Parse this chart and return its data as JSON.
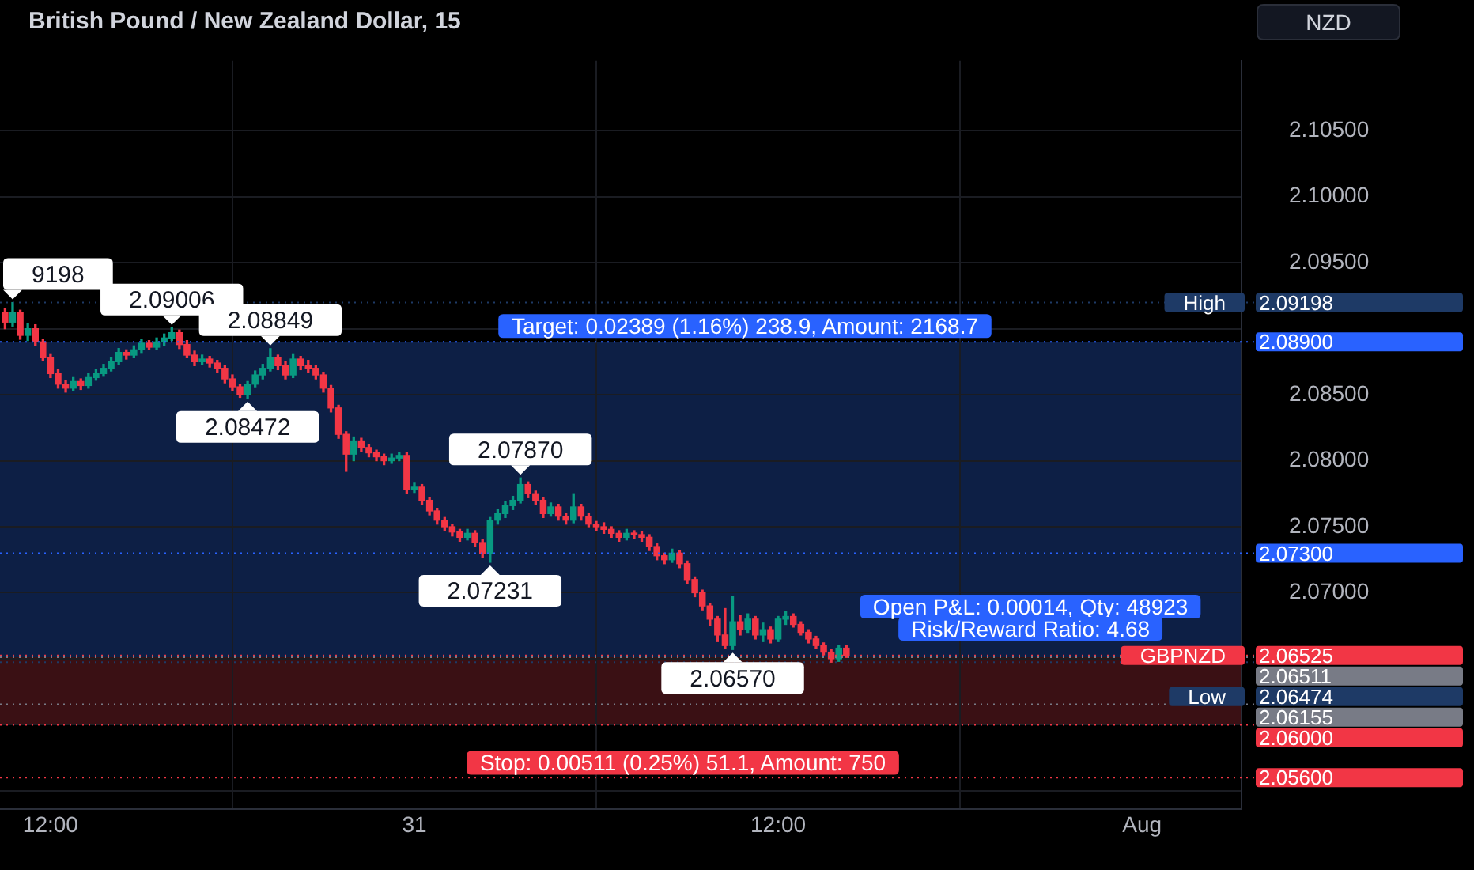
{
  "chart_data": {
    "type": "candlestick",
    "title": "British Pound / New Zealand Dollar, 15",
    "ylabel": "NZD",
    "x": [
      "--07-30T10:30",
      "--07-30T10:45",
      "--07-30T11:00",
      "--07-30T11:15",
      "--07-30T11:30",
      "--07-30T11:45",
      "--07-30T12:00",
      "--07-30T12:15",
      "--07-30T12:30",
      "--07-30T12:45",
      "--07-30T13:00",
      "--07-30T13:15",
      "--07-30T13:30",
      "--07-30T13:45",
      "--07-30T14:00",
      "--07-30T14:15",
      "--07-30T14:30",
      "--07-30T14:45",
      "--07-30T15:00",
      "--07-30T15:15",
      "--07-30T15:30",
      "--07-30T15:45",
      "--07-30T16:00",
      "--07-30T16:15",
      "--07-30T16:30",
      "--07-30T16:45",
      "--07-30T17:00",
      "--07-30T17:15",
      "--07-30T17:30",
      "--07-30T17:45",
      "--07-30T18:00",
      "--07-30T18:15",
      "--07-30T18:30",
      "--07-30T18:45",
      "--07-30T19:00",
      "--07-30T19:15",
      "--07-30T19:30",
      "--07-30T19:45",
      "--07-30T20:00",
      "--07-30T20:15",
      "--07-30T20:30",
      "--07-30T20:45",
      "--07-30T21:00",
      "--07-30T21:15",
      "--07-30T21:30",
      "--07-30T21:45",
      "--07-30T22:00",
      "--07-30T22:15",
      "--07-30T22:30",
      "--07-30T22:45",
      "--07-30T23:00",
      "--07-30T23:15",
      "--07-30T23:30",
      "--07-30T23:45",
      "--07-31T00:00",
      "--07-31T00:15",
      "--07-31T00:30",
      "--07-31T00:45",
      "--07-31T01:00",
      "--07-31T01:15",
      "--07-31T01:30",
      "--07-31T01:45",
      "--07-31T02:00",
      "--07-31T02:15",
      "--07-31T02:30",
      "--07-31T02:45",
      "--07-31T03:00",
      "--07-31T03:15",
      "--07-31T03:30",
      "--07-31T03:45",
      "--07-31T04:00",
      "--07-31T04:15",
      "--07-31T04:30",
      "--07-31T04:45",
      "--07-31T05:00",
      "--07-31T05:15",
      "--07-31T05:30",
      "--07-31T05:45",
      "--07-31T06:00",
      "--07-31T06:15",
      "--07-31T06:30",
      "--07-31T06:45",
      "--07-31T07:00",
      "--07-31T07:15",
      "--07-31T07:30",
      "--07-31T07:45",
      "--07-31T08:00",
      "--07-31T08:15",
      "--07-31T08:30",
      "--07-31T08:45",
      "--07-31T09:00",
      "--07-31T09:15",
      "--07-31T09:30",
      "--07-31T09:45",
      "--07-31T10:00",
      "--07-31T10:15",
      "--07-31T10:30",
      "--07-31T10:45",
      "--07-31T11:00",
      "--07-31T11:15",
      "--07-31T11:30",
      "--07-31T11:45",
      "--07-31T12:00",
      "--07-31T12:15",
      "--07-31T12:30",
      "--07-31T12:45",
      "--07-31T13:00",
      "--07-31T13:15",
      "--07-31T13:30",
      "--07-31T13:45",
      "--07-31T14:00",
      "--07-31T14:15"
    ],
    "ohlc": [
      [
        2.0912,
        2.0915,
        2.09,
        2.0905
      ],
      [
        2.0905,
        2.09198,
        2.0902,
        2.0912
      ],
      [
        2.0912,
        2.0914,
        2.0892,
        2.0895
      ],
      [
        2.0895,
        2.0904,
        2.0891,
        2.09
      ],
      [
        2.09,
        2.0903,
        2.0887,
        2.089
      ],
      [
        2.089,
        2.0892,
        2.0876,
        2.0878
      ],
      [
        2.0878,
        2.0881,
        2.0863,
        2.0866
      ],
      [
        2.0866,
        2.0869,
        2.0855,
        2.0858
      ],
      [
        2.0858,
        2.0861,
        2.0852,
        2.0855
      ],
      [
        2.0855,
        2.0863,
        2.0853,
        2.086
      ],
      [
        2.086,
        2.0862,
        2.0854,
        2.0857
      ],
      [
        2.0857,
        2.0866,
        2.0855,
        2.0863
      ],
      [
        2.0863,
        2.0869,
        2.0861,
        2.0866
      ],
      [
        2.0866,
        2.0873,
        2.0864,
        2.087
      ],
      [
        2.087,
        2.0878,
        2.0868,
        2.0875
      ],
      [
        2.0875,
        2.0885,
        2.0873,
        2.0882
      ],
      [
        2.0882,
        2.0884,
        2.0877,
        2.088
      ],
      [
        2.088,
        2.0887,
        2.0878,
        2.0884
      ],
      [
        2.0884,
        2.0892,
        2.0882,
        2.0889
      ],
      [
        2.0889,
        2.0891,
        2.0884,
        2.0886
      ],
      [
        2.0886,
        2.0893,
        2.0884,
        2.089
      ],
      [
        2.089,
        2.0896,
        2.0887,
        2.0893
      ],
      [
        2.0893,
        2.09006,
        2.0891,
        2.0897
      ],
      [
        2.0897,
        2.0899,
        2.0885,
        2.0888
      ],
      [
        2.0888,
        2.0891,
        2.0878,
        2.088
      ],
      [
        2.088,
        2.0883,
        2.0872,
        2.0875
      ],
      [
        2.0875,
        2.088,
        2.0873,
        2.0877
      ],
      [
        2.0877,
        2.0879,
        2.0871,
        2.0874
      ],
      [
        2.0874,
        2.0876,
        2.0867,
        2.087
      ],
      [
        2.087,
        2.0872,
        2.0859,
        2.0862
      ],
      [
        2.0862,
        2.0865,
        2.0853,
        2.0856
      ],
      [
        2.0856,
        2.0858,
        2.0848,
        2.085
      ],
      [
        2.085,
        2.086,
        2.08472,
        2.0858
      ],
      [
        2.0858,
        2.0868,
        2.0856,
        2.0865
      ],
      [
        2.0865,
        2.0873,
        2.0862,
        2.087
      ],
      [
        2.087,
        2.08849,
        2.0868,
        2.0878
      ],
      [
        2.0878,
        2.088,
        2.0869,
        2.0872
      ],
      [
        2.0872,
        2.0875,
        2.0862,
        2.0865
      ],
      [
        2.0865,
        2.0881,
        2.0863,
        2.0877
      ],
      [
        2.0877,
        2.0879,
        2.0869,
        2.0872
      ],
      [
        2.0872,
        2.0876,
        2.0867,
        2.087
      ],
      [
        2.087,
        2.0872,
        2.0862,
        2.0865
      ],
      [
        2.0865,
        2.0867,
        2.0852,
        2.0855
      ],
      [
        2.0855,
        2.0857,
        2.0837,
        2.084
      ],
      [
        2.084,
        2.0842,
        2.0817,
        2.082
      ],
      [
        2.082,
        2.0822,
        2.0792,
        2.0805
      ],
      [
        2.0805,
        2.0818,
        2.08,
        2.0815
      ],
      [
        2.0815,
        2.0817,
        2.0807,
        2.081
      ],
      [
        2.081,
        2.0812,
        2.0803,
        2.0806
      ],
      [
        2.0806,
        2.0808,
        2.08,
        2.0803
      ],
      [
        2.0803,
        2.0805,
        2.0797,
        2.08
      ],
      [
        2.08,
        2.0805,
        2.0798,
        2.0802
      ],
      [
        2.0802,
        2.0806,
        2.08,
        2.0804
      ],
      [
        2.0804,
        2.0806,
        2.0775,
        2.0778
      ],
      [
        2.0778,
        2.0783,
        2.0776,
        2.078
      ],
      [
        2.078,
        2.0782,
        2.0767,
        2.077
      ],
      [
        2.077,
        2.0772,
        2.0759,
        2.0762
      ],
      [
        2.0762,
        2.0764,
        2.0752,
        2.0755
      ],
      [
        2.0755,
        2.0757,
        2.0747,
        2.075
      ],
      [
        2.075,
        2.0752,
        2.0743,
        2.0746
      ],
      [
        2.0746,
        2.0748,
        2.0739,
        2.0742
      ],
      [
        2.0742,
        2.0748,
        2.074,
        2.0745
      ],
      [
        2.0745,
        2.0747,
        2.0735,
        2.0738
      ],
      [
        2.0738,
        2.074,
        2.0727,
        2.073
      ],
      [
        2.073,
        2.0757,
        2.07231,
        2.0755
      ],
      [
        2.0755,
        2.0763,
        2.0752,
        2.076
      ],
      [
        2.076,
        2.0769,
        2.0757,
        2.0766
      ],
      [
        2.0766,
        2.0773,
        2.0763,
        2.077
      ],
      [
        2.077,
        2.0787,
        2.0768,
        2.0782
      ],
      [
        2.0782,
        2.0784,
        2.0772,
        2.0775
      ],
      [
        2.0775,
        2.0777,
        2.0767,
        2.077
      ],
      [
        2.077,
        2.0772,
        2.0757,
        2.076
      ],
      [
        2.076,
        2.0768,
        2.0758,
        2.0765
      ],
      [
        2.0765,
        2.0767,
        2.0755,
        2.0758
      ],
      [
        2.0758,
        2.076,
        2.0752,
        2.0755
      ],
      [
        2.0755,
        2.0775,
        2.0753,
        2.0765
      ],
      [
        2.0765,
        2.0767,
        2.0755,
        2.0758
      ],
      [
        2.0758,
        2.076,
        2.075,
        2.0752
      ],
      [
        2.0752,
        2.0754,
        2.0747,
        2.075
      ],
      [
        2.075,
        2.0753,
        2.0745,
        2.0748
      ],
      [
        2.0748,
        2.075,
        2.0742,
        2.0745
      ],
      [
        2.0745,
        2.0747,
        2.0739,
        2.0742
      ],
      [
        2.0742,
        2.0748,
        2.074,
        2.0745
      ],
      [
        2.0745,
        2.0747,
        2.0741,
        2.0744
      ],
      [
        2.0744,
        2.0746,
        2.0739,
        2.0742
      ],
      [
        2.0742,
        2.0744,
        2.0732,
        2.0735
      ],
      [
        2.0735,
        2.0737,
        2.0725,
        2.0728
      ],
      [
        2.0728,
        2.073,
        2.0722,
        2.0725
      ],
      [
        2.0725,
        2.0733,
        2.0723,
        2.073
      ],
      [
        2.073,
        2.0732,
        2.0719,
        2.0722
      ],
      [
        2.0722,
        2.0724,
        2.0707,
        2.071
      ],
      [
        2.071,
        2.0712,
        2.0697,
        2.07
      ],
      [
        2.07,
        2.0702,
        2.0687,
        2.069
      ],
      [
        2.069,
        2.0692,
        2.0675,
        2.068
      ],
      [
        2.068,
        2.0682,
        2.0663,
        2.0668
      ],
      [
        2.0668,
        2.0688,
        2.0658,
        2.066
      ],
      [
        2.066,
        2.0697,
        2.0657,
        2.0678
      ],
      [
        2.0678,
        2.0683,
        2.0668,
        2.0672
      ],
      [
        2.0672,
        2.0684,
        2.067,
        2.068
      ],
      [
        2.068,
        2.0682,
        2.0665,
        2.0668
      ],
      [
        2.0668,
        2.0677,
        2.0663,
        2.0672
      ],
      [
        2.0672,
        2.0674,
        2.0662,
        2.0665
      ],
      [
        2.0665,
        2.0682,
        2.0663,
        2.068
      ],
      [
        2.068,
        2.0686,
        2.0676,
        2.0682
      ],
      [
        2.0682,
        2.0684,
        2.0674,
        2.0676
      ],
      [
        2.0676,
        2.0678,
        2.0668,
        2.067
      ],
      [
        2.067,
        2.0672,
        2.0662,
        2.0665
      ],
      [
        2.0665,
        2.0667,
        2.0658,
        2.066
      ],
      [
        2.066,
        2.0662,
        2.0653,
        2.0655
      ],
      [
        2.0655,
        2.0657,
        2.06474,
        2.065
      ],
      [
        2.065,
        2.066,
        2.0648,
        2.0658
      ],
      [
        2.0658,
        2.066,
        2.0651,
        2.06525
      ]
    ],
    "colors": [
      "#f23645",
      "#089981",
      "#f23645",
      "#089981",
      "#f23645",
      "#f23645",
      "#f23645",
      "#f23645",
      "#f23645",
      "#089981",
      "#f23645",
      "#089981",
      "#089981",
      "#089981",
      "#089981",
      "#089981",
      "#f23645",
      "#089981",
      "#089981",
      "#f23645",
      "#089981",
      "#089981",
      "#089981",
      "#f23645",
      "#f23645",
      "#f23645",
      "#089981",
      "#f23645",
      "#f23645",
      "#f23645",
      "#f23645",
      "#f23645",
      "#089981",
      "#089981",
      "#089981",
      "#089981",
      "#f23645",
      "#f23645",
      "#089981",
      "#f23645",
      "#f23645",
      "#f23645",
      "#f23645",
      "#f23645",
      "#f23645",
      "#f23645",
      "#089981",
      "#f23645",
      "#f23645",
      "#f23645",
      "#f23645",
      "#089981",
      "#089981",
      "#f23645",
      "#089981",
      "#f23645",
      "#f23645",
      "#f23645",
      "#f23645",
      "#f23645",
      "#f23645",
      "#089981",
      "#f23645",
      "#f23645",
      "#089981",
      "#089981",
      "#089981",
      "#089981",
      "#089981",
      "#f23645",
      "#f23645",
      "#f23645",
      "#089981",
      "#f23645",
      "#f23645",
      "#089981",
      "#f23645",
      "#f23645",
      "#f23645",
      "#f23645",
      "#f23645",
      "#f23645",
      "#089981",
      "#f23645",
      "#f23645",
      "#f23645",
      "#f23645",
      "#f23645",
      "#089981",
      "#f23645",
      "#f23645",
      "#f23645",
      "#f23645",
      "#f23645",
      "#f23645",
      "#f23645",
      "#089981",
      "#f23645",
      "#089981",
      "#f23645",
      "#089981",
      "#f23645",
      "#089981",
      "#089981",
      "#f23645",
      "#f23645",
      "#f23645",
      "#f23645",
      "#f23645",
      "#f23645",
      "#089981",
      "#f23645"
    ],
    "xlim": [
      "--07-30T10:20",
      "--08-01T03:17"
    ],
    "xticks": [
      {
        "value": "--07-30T12:00",
        "label": "12:00"
      },
      {
        "value": "--07-31",
        "label": "31"
      },
      {
        "value": "--07-31T12:00",
        "label": "12:00"
      },
      {
        "value": "--08-01",
        "label": "Aug"
      }
    ],
    "ylim": [
      2.0536,
      2.1103
    ],
    "yticks": [
      {
        "value": 2.055,
        "label": null
      },
      {
        "value": 2.06,
        "label": null
      },
      {
        "value": 2.065,
        "label": null
      },
      {
        "value": 2.07,
        "label": "2.07000"
      },
      {
        "value": 2.075,
        "label": "2.07500"
      },
      {
        "value": 2.08,
        "label": "2.08000"
      },
      {
        "value": 2.085,
        "label": "2.08500"
      },
      {
        "value": 2.09,
        "label": null
      },
      {
        "value": 2.095,
        "label": "2.09500"
      },
      {
        "value": 2.1,
        "label": "2.10000"
      },
      {
        "value": 2.105,
        "label": "2.10500"
      }
    ],
    "grid": true,
    "bands": [
      {
        "axis": "y",
        "from": 2.06511,
        "to": 2.089,
        "color": "#0d1f45"
      },
      {
        "axis": "y",
        "from": 2.06,
        "to": 2.06511,
        "color": "#3a1014"
      }
    ],
    "ref_lines": [
      {
        "axis": "y",
        "value": 2.09198,
        "label": "2.09198",
        "color": "#1e3a66",
        "line_style": "dotted"
      },
      {
        "axis": "y",
        "value": 2.089,
        "label": "2.08900",
        "color": "#2962ff",
        "line_style": "dotted"
      },
      {
        "axis": "y",
        "value": 2.073,
        "label": "2.07300",
        "color": "#2962ff",
        "line_style": "dotted"
      },
      {
        "axis": "y",
        "value": 2.06525,
        "label": "2.06525",
        "color": "#f23645",
        "line_style": "dotted"
      },
      {
        "axis": "y",
        "value": 2.06511,
        "label": "2.06511",
        "color": "#787b86",
        "line_style": "dotted"
      },
      {
        "axis": "y",
        "value": 2.06474,
        "label": "2.06474",
        "color": "#1e3a66",
        "line_style": "dotted"
      },
      {
        "axis": "y",
        "value": 2.06155,
        "label": "2.06155",
        "color": "#787b86",
        "line_style": "dotted"
      },
      {
        "axis": "y",
        "value": 2.06,
        "label": "2.06000",
        "color": "#f23645",
        "line_style": "dotted"
      },
      {
        "axis": "y",
        "value": 2.056,
        "label": "2.05600",
        "color": "#f23645",
        "line_style": "dotted"
      }
    ],
    "annotations": [
      {
        "text": "9198",
        "x": "--07-30T10:45",
        "y": 2.09198
      },
      {
        "text": "2.09006",
        "x": "--07-30T16:00",
        "y": 2.09006
      },
      {
        "text": "2.08849",
        "x": "--07-30T19:15",
        "y": 2.08849
      },
      {
        "text": "2.08472",
        "x": "--07-30T18:30",
        "y": 2.08472
      },
      {
        "text": "2.07870",
        "x": "--07-31T03:30",
        "y": 2.0787
      },
      {
        "text": "2.07231",
        "x": "--07-31T02:30",
        "y": 2.07231
      },
      {
        "text": "2.06570",
        "x": "--07-31T10:30",
        "y": 2.0657
      },
      {
        "text": "High",
        "y": 2.09198
      },
      {
        "text": "GBPNZD",
        "y": 2.06525
      },
      {
        "text": "Low",
        "y": 2.06474
      },
      "Target: 0.02389 (1.16%) 238.9, Amount: 2168.7",
      "Open P&L: 0.00014, Qty: 48923",
      "Risk/Reward Ratio: 4.68",
      "Stop: 0.00511 (0.25%) 51.1, Amount: 750"
    ]
  }
}
